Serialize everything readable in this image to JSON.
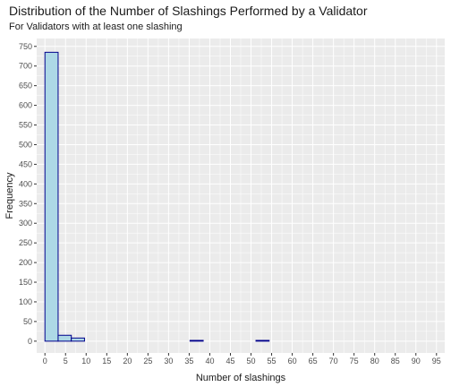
{
  "chart_data": {
    "type": "bar",
    "title": "Distribution of the Number of Slashings Performed by a Validator",
    "subtitle": "For Validators with at least one slashing",
    "xlabel": "Number of slashings",
    "ylabel": "Frequency",
    "xlim": [
      -2,
      97
    ],
    "ylim": [
      -30,
      770
    ],
    "x_ticks": [
      0,
      5,
      10,
      15,
      20,
      25,
      30,
      35,
      40,
      45,
      50,
      55,
      60,
      65,
      70,
      75,
      80,
      85,
      90,
      95
    ],
    "y_ticks": [
      0,
      50,
      100,
      150,
      200,
      250,
      300,
      350,
      400,
      450,
      500,
      550,
      600,
      650,
      700,
      750
    ],
    "bin_width": 3.2,
    "bins": [
      {
        "x0": 0.0,
        "x1": 3.2,
        "count": 735
      },
      {
        "x0": 3.2,
        "x1": 6.4,
        "count": 15
      },
      {
        "x0": 6.4,
        "x1": 9.6,
        "count": 8
      },
      {
        "x0": 9.6,
        "x1": 12.8,
        "count": 0
      },
      {
        "x0": 12.8,
        "x1": 16.0,
        "count": 0
      },
      {
        "x0": 16.0,
        "x1": 19.2,
        "count": 0
      },
      {
        "x0": 19.2,
        "x1": 22.4,
        "count": 0
      },
      {
        "x0": 22.4,
        "x1": 25.6,
        "count": 0
      },
      {
        "x0": 25.6,
        "x1": 28.8,
        "count": 0
      },
      {
        "x0": 28.8,
        "x1": 32.0,
        "count": 0
      },
      {
        "x0": 32.0,
        "x1": 35.2,
        "count": 0
      },
      {
        "x0": 35.2,
        "x1": 38.4,
        "count": 2
      },
      {
        "x0": 38.4,
        "x1": 41.6,
        "count": 0
      },
      {
        "x0": 41.6,
        "x1": 44.8,
        "count": 0
      },
      {
        "x0": 44.8,
        "x1": 48.0,
        "count": 0
      },
      {
        "x0": 48.0,
        "x1": 51.2,
        "count": 0
      },
      {
        "x0": 51.2,
        "x1": 54.4,
        "count": 2
      },
      {
        "x0": 54.4,
        "x1": 57.6,
        "count": 0
      },
      {
        "x0": 57.6,
        "x1": 60.8,
        "count": 0
      },
      {
        "x0": 60.8,
        "x1": 64.0,
        "count": 0
      },
      {
        "x0": 64.0,
        "x1": 67.2,
        "count": 0
      },
      {
        "x0": 67.2,
        "x1": 70.4,
        "count": 0
      },
      {
        "x0": 70.4,
        "x1": 73.6,
        "count": 0
      },
      {
        "x0": 73.6,
        "x1": 76.8,
        "count": 0
      },
      {
        "x0": 76.8,
        "x1": 80.0,
        "count": 0
      },
      {
        "x0": 80.0,
        "x1": 83.2,
        "count": 0
      },
      {
        "x0": 83.2,
        "x1": 86.4,
        "count": 0
      },
      {
        "x0": 86.4,
        "x1": 89.6,
        "count": 0
      },
      {
        "x0": 89.6,
        "x1": 92.8,
        "count": 0
      },
      {
        "x0": 92.8,
        "x1": 96.0,
        "count": 0
      }
    ],
    "grid": true,
    "legend": "none",
    "colors": {
      "panel": "#ebebeb",
      "grid": "#ffffff",
      "bar_fill": "#add8e6",
      "bar_stroke": "#00008b"
    }
  }
}
